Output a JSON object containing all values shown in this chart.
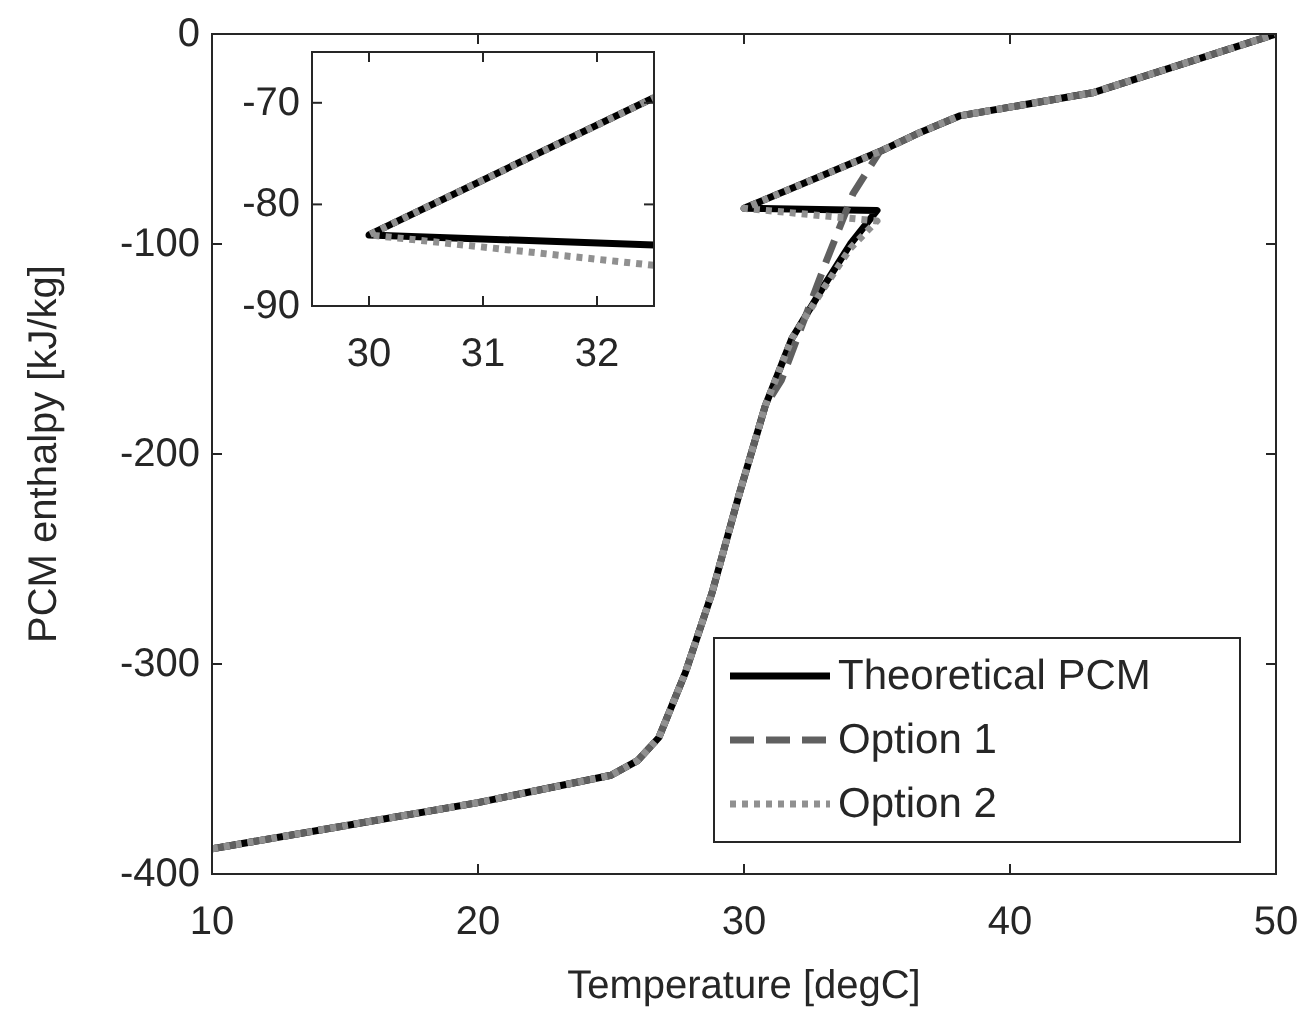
{
  "chart_data": [
    {
      "type": "line",
      "xlabel": "Temperature [degC]",
      "ylabel": "PCM enthalpy [kJ/kg]",
      "xlim": [
        10,
        50
      ],
      "ylim": [
        -400,
        0
      ],
      "xticks": [
        10,
        20,
        30,
        40,
        50
      ],
      "yticks": [
        -400,
        -300,
        -200,
        -100,
        0
      ],
      "grid": false,
      "legend": "bottom right",
      "marker": "none",
      "series": [
        {
          "name": "Theoretical PCM",
          "color": "#000000",
          "line_style": "solid",
          "x": [
            10,
            15,
            20,
            25,
            26,
            26.8,
            27.8,
            28.8,
            29.8,
            30.8,
            31.8,
            33,
            34,
            35,
            30,
            35.1,
            36.6,
            38.1,
            43.1,
            50
          ],
          "values": [
            -388,
            -377,
            -366,
            -353,
            -346,
            -335,
            -304,
            -266,
            -220,
            -177,
            -145,
            -120,
            -100,
            -84,
            -83,
            -56,
            -47,
            -39,
            -28,
            0
          ]
        },
        {
          "name": "Option 1",
          "color": "#606060",
          "line_style": "dashed",
          "x": [
            10,
            15,
            20,
            25,
            26,
            26.8,
            27.8,
            28.8,
            29.8,
            30.8,
            31.4,
            33.1,
            34.1,
            35.1,
            36.6,
            38.1,
            43.1,
            50
          ],
          "values": [
            -388,
            -377,
            -366,
            -353,
            -346,
            -335,
            -304,
            -266,
            -220,
            -177,
            -165,
            -108,
            -76,
            -56,
            -47,
            -39,
            -28,
            0
          ]
        },
        {
          "name": "Option 2",
          "color": "#909090",
          "line_style": "dotted",
          "x": [
            10,
            15,
            20,
            25,
            26,
            26.8,
            27.8,
            28.8,
            29.8,
            30.8,
            31.8,
            33,
            34,
            35,
            30,
            35.1,
            36.6,
            38.1,
            43.1,
            50
          ],
          "values": [
            -388,
            -377,
            -366,
            -353,
            -346,
            -335,
            -304,
            -266,
            -220,
            -177,
            -145,
            -121,
            -102,
            -89,
            -83,
            -56,
            -47,
            -39,
            -28,
            0
          ]
        }
      ]
    },
    {
      "type": "line",
      "xlim": [
        29.5,
        32.5
      ],
      "ylim": [
        -90,
        -65
      ],
      "xticks": [
        30,
        31,
        32
      ],
      "yticks": [
        -90,
        -80,
        -70
      ],
      "grid": false,
      "marker": "none",
      "series": [
        {
          "color": "#000000",
          "line_style": "solid",
          "x": [
            32.5,
            30,
            32.5
          ],
          "values": [
            -84,
            -83,
            -69.5
          ]
        },
        {
          "color": "#909090",
          "line_style": "dotted",
          "x": [
            32.5,
            30,
            32.5
          ],
          "values": [
            -86,
            -83,
            -69.5
          ]
        }
      ]
    }
  ]
}
